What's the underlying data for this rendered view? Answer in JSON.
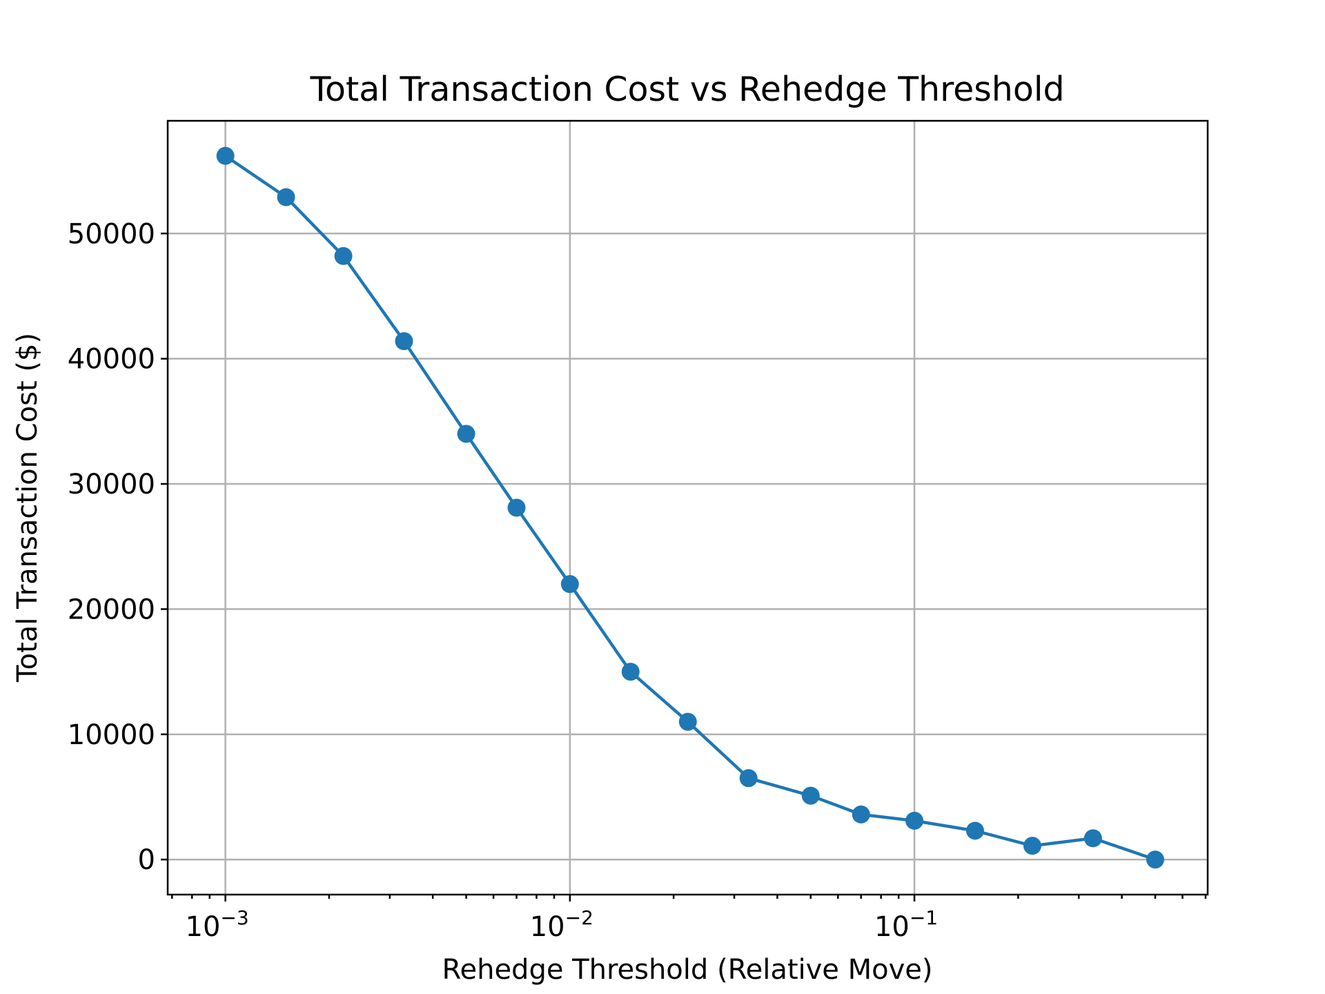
{
  "chart_data": {
    "type": "line",
    "title": "Total Transaction Cost vs Rehedge Threshold",
    "xlabel": "Rehedge Threshold (Relative Move)",
    "ylabel": "Total Transaction Cost ($)",
    "xscale": "log",
    "xlim": [
      0.00068,
      0.71
    ],
    "ylim": [
      -2800,
      59000
    ],
    "grid": true,
    "color": "#1f77b4",
    "marker": "circle",
    "x_ticks": [
      {
        "base": "10",
        "exp": "−3",
        "value": 0.001
      },
      {
        "base": "10",
        "exp": "−2",
        "value": 0.01
      },
      {
        "base": "10",
        "exp": "−1",
        "value": 0.1
      }
    ],
    "y_ticks": [
      0,
      10000,
      20000,
      30000,
      40000,
      50000
    ],
    "series": [
      {
        "x": [
          0.001,
          0.0015,
          0.0022,
          0.0033,
          0.005,
          0.007,
          0.01,
          0.015,
          0.022,
          0.033,
          0.05,
          0.07,
          0.1,
          0.15,
          0.22,
          0.33,
          0.5
        ],
        "y": [
          56200,
          52900,
          48200,
          41400,
          34000,
          28100,
          22000,
          15000,
          11000,
          6500,
          5100,
          3600,
          3100,
          2300,
          1100,
          1700,
          0
        ]
      }
    ]
  }
}
